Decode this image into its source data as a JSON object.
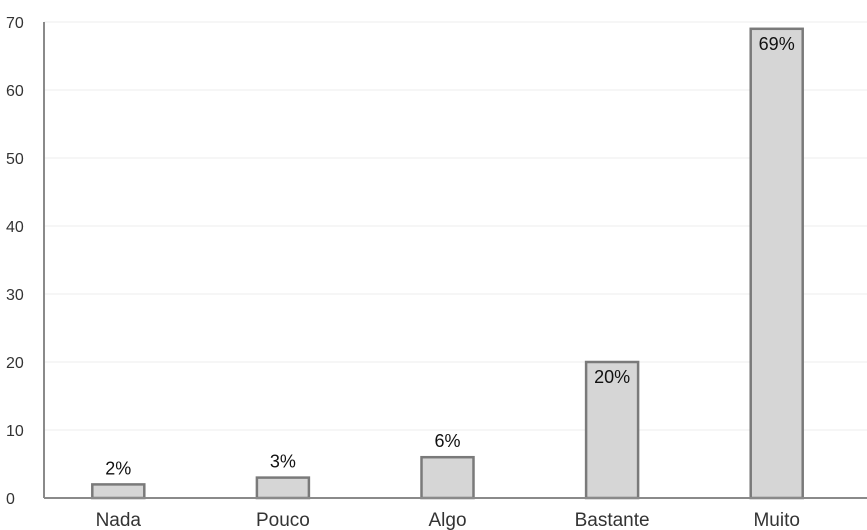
{
  "chart_data": {
    "type": "bar",
    "title": "",
    "xlabel": "",
    "ylabel": "",
    "categories": [
      "Nada",
      "Pouco",
      "Algo",
      "Bastante",
      "Muito"
    ],
    "values": [
      2,
      3,
      6,
      20,
      69
    ],
    "data_labels": [
      "2%",
      "3%",
      "6%",
      "20%",
      "69%"
    ],
    "ylim": [
      0,
      70
    ],
    "yticks": [
      0,
      10,
      20,
      30,
      40,
      50,
      60,
      70
    ],
    "grid": true,
    "legend": "none",
    "colors": {
      "bar_fill": "#d6d6d6",
      "bar_stroke": "#7a7a7a",
      "axis": "#8a8a8a",
      "grid": "#ececec"
    }
  }
}
